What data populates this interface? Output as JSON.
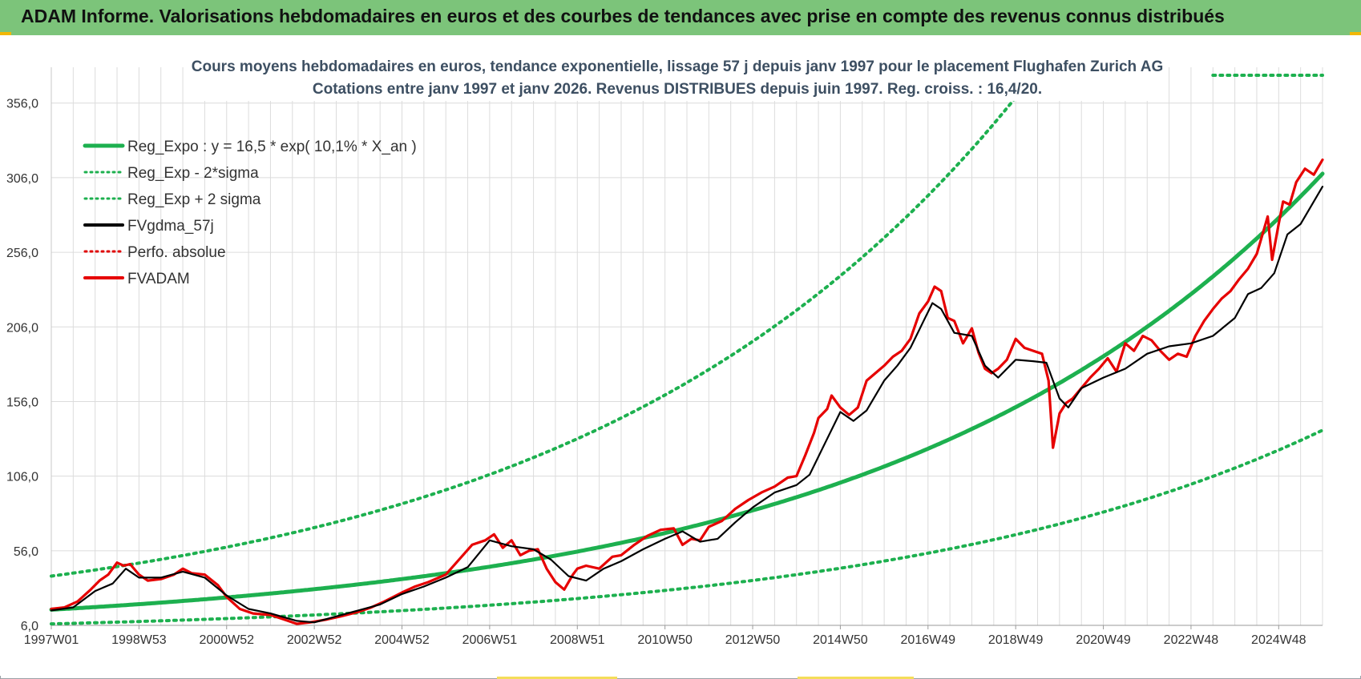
{
  "header": {
    "title": "ADAM Informe. Valorisations hebdomadaires en euros et des courbes de tendances avec prise en compte des revenus connus distribués"
  },
  "chart_data": {
    "type": "line",
    "title_line1": "Cours moyens hebdomadaires en euros, tendance exponentielle, lissage 57 j depuis janv 1997  pour le placement Flughafen Zurich AG",
    "title_line2": "Cotations entre janv 1997 et janv 2026. Revenus DISTRIBUES depuis juin 1997. Reg. croiss. : 16,4/20.",
    "x_range": [
      1997.0,
      2026.0
    ],
    "ylim": [
      6.0,
      380.0
    ],
    "y_ticks": [
      6.0,
      56.0,
      106.0,
      156.0,
      206.0,
      256.0,
      306.0,
      356.0
    ],
    "y_tick_labels": [
      "6,0",
      "56,0",
      "106,0",
      "156,0",
      "206,0",
      "256,0",
      "306,0",
      "356,0"
    ],
    "x_ticks": [
      1997.0,
      1999.0,
      2001.0,
      2003.0,
      2005.0,
      2007.0,
      2009.0,
      2011.0,
      2013.0,
      2015.0,
      2017.0,
      2019.0,
      2021.0,
      2023.0,
      2025.0
    ],
    "x_tick_labels": [
      "1997W01",
      "1998W53",
      "2000W52",
      "2002W52",
      "2004W52",
      "2006W51",
      "2008W51",
      "2010W50",
      "2012W50",
      "2014W50",
      "2016W49",
      "2018W49",
      "2020W49",
      "2022W48",
      "2024W48"
    ],
    "grid": true,
    "legend_position": "top-left",
    "series": [
      {
        "name": "Reg_Expo : y = 16,5 * exp( 10,1% *  X_an )",
        "color": "#1db04f",
        "style": "solid",
        "kind": "exp",
        "a": 16.5,
        "b": 0.101,
        "x0": 1997.0
      },
      {
        "name": "Reg_Exp - 2*sigma",
        "color": "#1db04f",
        "style": "dotted",
        "kind": "exp",
        "a": 7.0,
        "b": 0.1025,
        "x0": 1997.0
      },
      {
        "name": "Reg_Exp + 2 sigma",
        "color": "#1db04f",
        "style": "dotted",
        "kind": "exp",
        "a": 39.0,
        "b": 0.101,
        "x0": 1997.0,
        "extra_segment": {
          "x": [
            2023.5,
            2026.0
          ],
          "y": [
            385.0,
            385.0
          ]
        }
      },
      {
        "name": "FVgdma_57j",
        "color": "#000000",
        "style": "solid",
        "kind": "points",
        "x": [
          1997.0,
          1997.5,
          1998.0,
          1998.4,
          1998.7,
          1999.0,
          1999.5,
          2000.0,
          2000.5,
          2001.0,
          2001.5,
          2002.0,
          2002.6,
          2003.0,
          2003.5,
          2004.0,
          2004.5,
          2005.0,
          2005.5,
          2006.0,
          2006.5,
          2007.0,
          2007.5,
          2008.0,
          2008.4,
          2008.8,
          2009.2,
          2009.6,
          2010.0,
          2010.5,
          2011.0,
          2011.4,
          2011.8,
          2012.2,
          2012.6,
          2013.0,
          2013.5,
          2014.0,
          2014.3,
          2014.6,
          2015.0,
          2015.3,
          2015.6,
          2016.0,
          2016.3,
          2016.6,
          2016.9,
          2017.1,
          2017.3,
          2017.6,
          2018.0,
          2018.3,
          2018.6,
          2019.0,
          2019.4,
          2019.7,
          2020.0,
          2020.2,
          2020.5,
          2021.0,
          2021.5,
          2022.0,
          2022.5,
          2023.0,
          2023.5,
          2024.0,
          2024.3,
          2024.6,
          2024.9,
          2025.2,
          2025.5,
          2026.0
        ],
        "y": [
          16,
          18,
          29,
          34,
          44,
          38,
          38,
          42,
          38,
          26,
          17,
          14,
          9,
          8,
          12,
          16,
          20,
          27,
          32,
          38,
          45,
          63,
          59,
          57,
          50,
          39,
          36,
          44,
          49,
          57,
          64,
          69,
          62,
          64,
          75,
          85,
          95,
          100,
          107,
          125,
          149,
          143,
          150,
          170,
          180,
          192,
          210,
          222,
          218,
          202,
          200,
          180,
          172,
          184,
          183,
          182,
          158,
          152,
          165,
          172,
          178,
          188,
          193,
          195,
          200,
          212,
          228,
          232,
          242,
          268,
          275,
          300
        ]
      },
      {
        "name": "Perfo. absolue",
        "color": "#e00000",
        "style": "dotted",
        "kind": "none"
      },
      {
        "name": "FVADAM",
        "color": "#e60000",
        "style": "solid",
        "kind": "points",
        "x": [
          1997.0,
          1997.3,
          1997.6,
          1997.9,
          1998.1,
          1998.3,
          1998.5,
          1998.65,
          1998.8,
          1999.0,
          1999.2,
          1999.5,
          1999.8,
          2000.0,
          2000.2,
          2000.5,
          2000.8,
          2001.0,
          2001.3,
          2001.6,
          2002.0,
          2002.3,
          2002.6,
          2002.9,
          2003.1,
          2003.3,
          2003.6,
          2004.0,
          2004.3,
          2004.6,
          2005.0,
          2005.3,
          2005.6,
          2006.0,
          2006.3,
          2006.6,
          2006.9,
          2007.1,
          2007.3,
          2007.5,
          2007.7,
          2007.9,
          2008.1,
          2008.3,
          2008.5,
          2008.7,
          2008.9,
          2009.0,
          2009.2,
          2009.5,
          2009.8,
          2010.0,
          2010.3,
          2010.6,
          2010.9,
          2011.2,
          2011.4,
          2011.6,
          2011.8,
          2012.0,
          2012.3,
          2012.6,
          2012.9,
          2013.2,
          2013.5,
          2013.8,
          2014.0,
          2014.2,
          2014.4,
          2014.5,
          2014.7,
          2014.8,
          2015.0,
          2015.2,
          2015.4,
          2015.6,
          2015.8,
          2016.0,
          2016.2,
          2016.4,
          2016.6,
          2016.8,
          2017.0,
          2017.15,
          2017.3,
          2017.45,
          2017.6,
          2017.8,
          2018.0,
          2018.15,
          2018.3,
          2018.45,
          2018.6,
          2018.8,
          2019.0,
          2019.2,
          2019.4,
          2019.6,
          2019.75,
          2019.85,
          2020.0,
          2020.15,
          2020.3,
          2020.5,
          2020.7,
          2020.9,
          2021.1,
          2021.3,
          2021.5,
          2021.7,
          2021.9,
          2022.1,
          2022.3,
          2022.5,
          2022.7,
          2022.9,
          2023.1,
          2023.3,
          2023.5,
          2023.7,
          2023.9,
          2024.1,
          2024.3,
          2024.5,
          2024.65,
          2024.75,
          2024.85,
          2025.0,
          2025.1,
          2025.25,
          2025.4,
          2025.6,
          2025.8,
          2026.0
        ],
        "y": [
          17,
          18,
          22,
          30,
          36,
          40,
          48,
          46,
          47,
          40,
          36,
          37,
          40,
          44,
          41,
          40,
          33,
          25,
          17,
          14,
          13,
          10,
          7,
          8,
          9,
          10,
          12,
          15,
          18,
          22,
          28,
          32,
          35,
          40,
          50,
          60,
          63,
          67,
          58,
          63,
          53,
          56,
          57,
          44,
          35,
          30,
          40,
          44,
          46,
          44,
          52,
          53,
          60,
          66,
          70,
          71,
          60,
          64,
          63,
          72,
          76,
          84,
          90,
          95,
          99,
          105,
          106,
          120,
          135,
          145,
          151,
          160,
          152,
          147,
          152,
          170,
          175,
          180,
          186,
          190,
          198,
          215,
          223,
          233,
          230,
          212,
          210,
          195,
          205,
          189,
          178,
          175,
          178,
          184,
          198,
          192,
          190,
          188,
          170,
          125,
          148,
          155,
          158,
          165,
          172,
          178,
          185,
          176,
          195,
          190,
          200,
          197,
          190,
          184,
          188,
          186,
          200,
          210,
          218,
          225,
          230,
          238,
          245,
          255,
          270,
          280,
          251,
          275,
          290,
          288,
          303,
          312,
          308,
          318
        ]
      }
    ]
  }
}
